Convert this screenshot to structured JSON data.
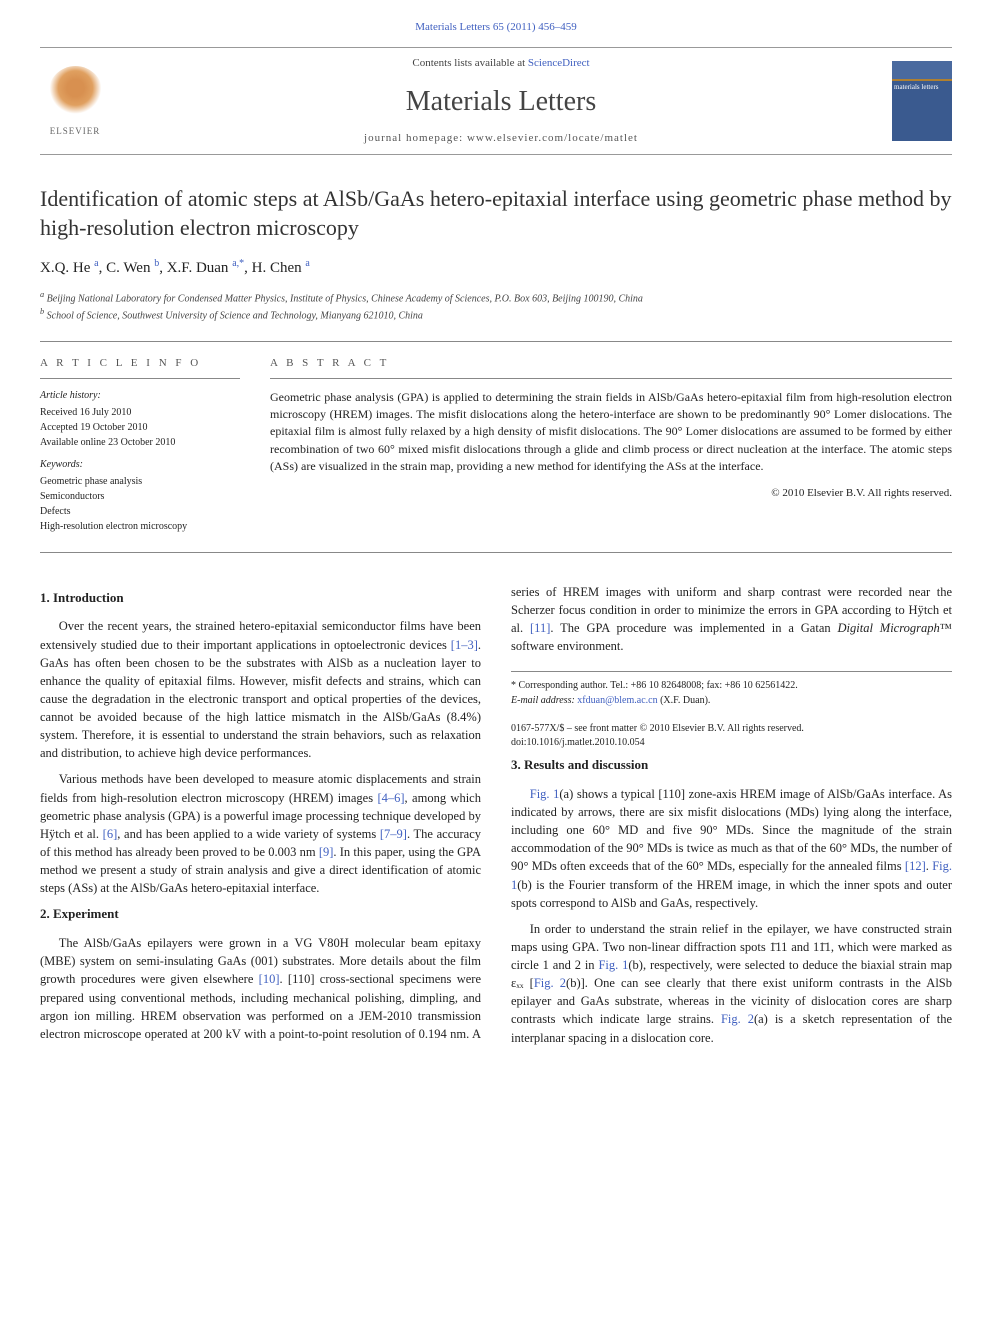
{
  "citation": "Materials Letters 65 (2011) 456–459",
  "contents_prefix": "Contents lists available at ",
  "contents_link": "ScienceDirect",
  "journal_name": "Materials Letters",
  "homepage_label": "journal homepage: www.elsevier.com/locate/matlet",
  "elsevier_label": "ELSEVIER",
  "thumb_label": "materials letters",
  "title": "Identification of atomic steps at AlSb/GaAs hetero-epitaxial interface using geometric phase method by high-resolution electron microscopy",
  "authors_html": {
    "a1_name": "X.Q. He",
    "a1_aff": "a",
    "a2_name": "C. Wen",
    "a2_aff": "b",
    "a3_name": "X.F. Duan",
    "a3_aff": "a,",
    "a3_corr": "*",
    "a4_name": "H. Chen",
    "a4_aff": "a"
  },
  "affil_a": "Beijing National Laboratory for Condensed Matter Physics, Institute of Physics, Chinese Academy of Sciences, P.O. Box 603, Beijing 100190, China",
  "affil_b": "School of Science, Southwest University of Science and Technology, Mianyang 621010, China",
  "info_heading": "A R T I C L E   I N F O",
  "history_label": "Article history:",
  "history": {
    "received": "Received 16 July 2010",
    "accepted": "Accepted 19 October 2010",
    "online": "Available online 23 October 2010"
  },
  "keywords_label": "Keywords:",
  "keywords": [
    "Geometric phase analysis",
    "Semiconductors",
    "Defects",
    "High-resolution electron microscopy"
  ],
  "abstract_heading": "A B S T R A C T",
  "abstract_text": "Geometric phase analysis (GPA) is applied to determining the strain fields in AlSb/GaAs hetero-epitaxial film from high-resolution electron microscopy (HREM) images. The misfit dislocations along the hetero-interface are shown to be predominantly 90° Lomer dislocations. The epitaxial film is almost fully relaxed by a high density of misfit dislocations. The 90° Lomer dislocations are assumed to be formed by either recombination of two 60° mixed misfit dislocations through a glide and climb process or direct nucleation at the interface. The atomic steps (ASs) are visualized in the strain map, providing a new method for identifying the ASs at the interface.",
  "abstract_copyright": "© 2010 Elsevier B.V. All rights reserved.",
  "sections": {
    "intro_h": "1. Introduction",
    "intro_p1a": "Over the recent years, the strained hetero-epitaxial semiconductor films have been extensively studied due to their important applications in optoelectronic devices ",
    "intro_p1_ref1": "[1–3]",
    "intro_p1b": ". GaAs has often been chosen to be the substrates with AlSb as a nucleation layer to enhance the quality of epitaxial films. However, misfit defects and strains, which can cause the degradation in the electronic transport and optical properties of the devices, cannot be avoided because of the high lattice mismatch in the AlSb/GaAs (8.4%) system. Therefore, it is essential to understand the strain behaviors, such as relaxation and distribution, to achieve high device performances.",
    "intro_p2a": "Various methods have been developed to measure atomic displacements and strain fields from high-resolution electron microscopy (HREM) images ",
    "intro_p2_ref1": "[4–6]",
    "intro_p2b": ", among which geometric phase analysis (GPA) is a powerful image processing technique developed by Hÿtch et al. ",
    "intro_p2_ref2": "[6]",
    "intro_p2c": ", and has been applied to a wide variety of systems ",
    "intro_p2_ref3": "[7–9]",
    "intro_p2d": ". The accuracy of this method has already been proved to be 0.003 nm ",
    "intro_p2_ref4": "[9]",
    "intro_p2e": ". In this paper, using the GPA method we present a study of strain analysis and give a direct identification of atomic steps (ASs) at the AlSb/GaAs hetero-epitaxial interface.",
    "exp_h": "2. Experiment",
    "exp_p1a": "The AlSb/GaAs epilayers were grown in a VG V80H molecular beam epitaxy (MBE) system on semi-insulating GaAs (001) substrates. More ",
    "exp_p1b": "details about the film growth procedures were given elsewhere ",
    "exp_p1_ref1": "[10]",
    "exp_p1c": ". [110] cross-sectional specimens were prepared using conventional methods, including mechanical polishing, dimpling, and argon ion milling. HREM observation was performed on a JEM-2010 transmission electron microscope operated at 200 kV with a point-to-point resolution of 0.194 nm. A series of HREM images with uniform and sharp contrast were recorded near the Scherzer focus condition in order to minimize the errors in GPA according to Hÿtch et al. ",
    "exp_p1_ref2": "[11]",
    "exp_p1d": ". The GPA procedure was implemented in a Gatan ",
    "exp_p1_italic": "Digital Micrograph",
    "exp_p1e": "™ software environment.",
    "res_h": "3. Results and discussion",
    "res_p1_ref1": "Fig. 1",
    "res_p1a": "(a) shows a typical [110] zone-axis HREM image of AlSb/GaAs interface. As indicated by arrows, there are six misfit dislocations (MDs) lying along the interface, including one 60° MD and five 90° MDs. Since the magnitude of the strain accommodation of the 90° MDs is twice as much as that of the 60° MDs, the number of 90° MDs often exceeds that of the 60° MDs, especially for the annealed films ",
    "res_p1_ref2": "[12]",
    "res_p1b": ". ",
    "res_p1_ref3": "Fig. 1",
    "res_p1c": "(b) is the Fourier transform of the HREM image, in which the inner spots and outer spots correspond to AlSb and GaAs, respectively.",
    "res_p2a": "In order to understand the strain relief in the epilayer, we have constructed strain maps using GPA. Two non-linear diffraction spots 1̄11 and 11̄1, which were marked as circle 1 and 2 in ",
    "res_p2_ref1": "Fig. 1",
    "res_p2b": "(b), respectively, were selected to deduce the biaxial strain map εₓₓ [",
    "res_p2_ref2": "Fig. 2",
    "res_p2c": "(b)]. One can see clearly that there exist uniform contrasts in the AlSb epilayer and GaAs substrate, whereas in the vicinity of dislocation cores are sharp contrasts which indicate large strains. ",
    "res_p2_ref3": "Fig. 2",
    "res_p2d": "(a) is a sketch representation of the interplanar spacing in a dislocation core."
  },
  "footnote_corr_label": "* Corresponding author. Tel.: +86 10 82648008; fax: +86 10 62561422.",
  "footnote_email_label": "E-mail address:",
  "footnote_email": "xfduan@blem.ac.cn",
  "footnote_email_name": "(X.F. Duan).",
  "bottom_issn": "0167-577X/$ – see front matter © 2010 Elsevier B.V. All rights reserved.",
  "bottom_doi": "doi:10.1016/j.matlet.2010.10.054",
  "colors": {
    "link": "#4060c0",
    "rule": "#888888",
    "text": "#222222"
  }
}
